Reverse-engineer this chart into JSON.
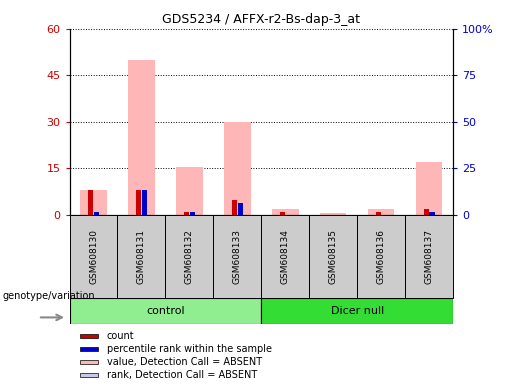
{
  "title": "GDS5234 / AFFX-r2-Bs-dap-3_at",
  "samples": [
    "GSM608130",
    "GSM608131",
    "GSM608132",
    "GSM608133",
    "GSM608134",
    "GSM608135",
    "GSM608136",
    "GSM608137"
  ],
  "count_values": [
    8,
    8,
    1,
    5,
    1,
    0,
    1,
    2
  ],
  "rank_values": [
    1,
    8,
    1,
    4,
    0,
    0,
    0,
    1
  ],
  "value_absent": [
    8,
    50,
    15.5,
    30,
    2,
    0.5,
    2,
    17
  ],
  "rank_absent": [
    1,
    8,
    1,
    4,
    0,
    0,
    0,
    1
  ],
  "left_ylim": [
    0,
    60
  ],
  "left_yticks": [
    0,
    15,
    30,
    45,
    60
  ],
  "right_ylim": [
    0,
    100
  ],
  "right_yticks": [
    0,
    25,
    50,
    75,
    100
  ],
  "left_color": "#cc0000",
  "right_color": "#0000cc",
  "pink_color": "#ffb6b6",
  "lavender_color": "#c8c8e8",
  "red_color": "#cc0000",
  "blue_color": "#0000cc",
  "sample_box_color": "#cccccc",
  "control_color": "#90ee90",
  "dicer_color": "#33dd33",
  "group_spans": [
    {
      "label": "control",
      "start": 0,
      "end": 4,
      "color": "#90ee90"
    },
    {
      "label": "Dicer null",
      "start": 4,
      "end": 8,
      "color": "#33dd33"
    }
  ],
  "legend_items": [
    {
      "label": "count",
      "color": "#cc0000"
    },
    {
      "label": "percentile rank within the sample",
      "color": "#0000cc"
    },
    {
      "label": "value, Detection Call = ABSENT",
      "color": "#ffb6b6"
    },
    {
      "label": "rank, Detection Call = ABSENT",
      "color": "#c8c8e8"
    }
  ],
  "genotype_label": "genotype/variation"
}
